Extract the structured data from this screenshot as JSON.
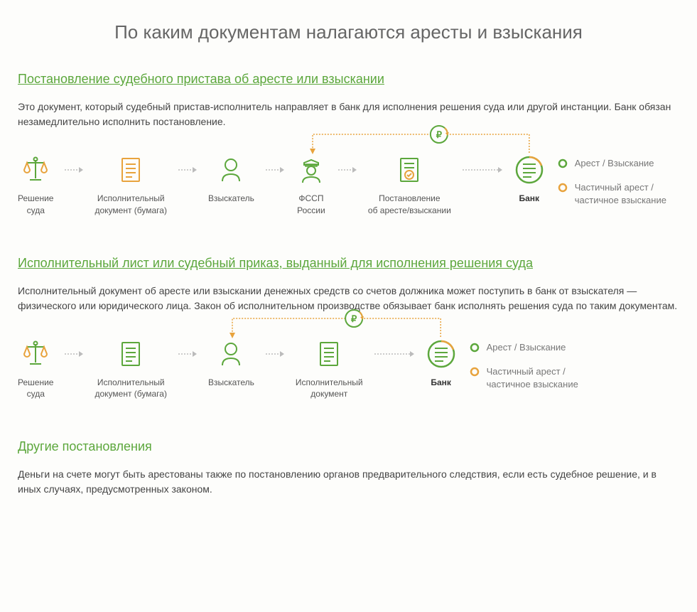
{
  "colors": {
    "green": "#5ca73c",
    "orange": "#e8a33d",
    "text": "#444",
    "text_muted": "#777",
    "arrow": "#bbb",
    "arrow_orange": "#e8a33d"
  },
  "main_title": "По каким документам налагаются аресты и взыскания",
  "section1": {
    "title": "Постановление судебного пристава об аресте или взыскании",
    "text": "Это документ, который судебный пристав-исполнитель направляет в банк для исполнения решения суда или другой инстанции. Банк обязан незамедлительно исполнить постановление.",
    "flow": {
      "steps": [
        {
          "icon": "scales",
          "label": "Решение\nсуда"
        },
        {
          "icon": "doc-orange",
          "label": "Исполнительный\nдокумент (бумага)"
        },
        {
          "icon": "person",
          "label": "Взыскатель"
        },
        {
          "icon": "officer",
          "label": "ФССП\nРоссии"
        },
        {
          "icon": "doc-check",
          "label": "Постановление\nоб аресте/взыскании"
        },
        {
          "icon": "bank",
          "label": "Банк"
        }
      ],
      "outcomes": [
        {
          "color_type": "green",
          "text": "Арест / Взыскание"
        },
        {
          "color_type": "orange",
          "text": "Частичный арест /\nчастичное взыскание"
        }
      ],
      "feedback_from": 3,
      "feedback_to": 5
    }
  },
  "section2": {
    "title": "Исполнительный лист или судебный приказ, выданный для исполнения решения суда",
    "text": "Исполнительный документ об аресте или взыскании денежных средств со счетов должника может поступить в банк от взыскателя — физического или юридического лица. Закон об исполнительном производстве обязывает банк исполнять решения суда по таким документам.",
    "flow": {
      "steps": [
        {
          "icon": "scales",
          "label": "Решение\nсуда"
        },
        {
          "icon": "doc-green",
          "label": "Исполнительный\nдокумент (бумага)"
        },
        {
          "icon": "person",
          "label": "Взыскатель"
        },
        {
          "icon": "doc-green",
          "label": "Исполнительный\nдокумент"
        },
        {
          "icon": "bank",
          "label": "Банк"
        }
      ],
      "outcomes": [
        {
          "color_type": "green",
          "text": "Арест / Взыскание"
        },
        {
          "color_type": "orange",
          "text": "Частичный арест /\nчастичное взыскание"
        }
      ],
      "feedback_from": 2,
      "feedback_to": 4
    }
  },
  "section3": {
    "title": "Другие постановления",
    "text": "Деньги на счете могут быть арестованы также по постановлению органов предварительного следствия, если есть судебное решение, и в иных случаях, предусмотренных законом."
  }
}
